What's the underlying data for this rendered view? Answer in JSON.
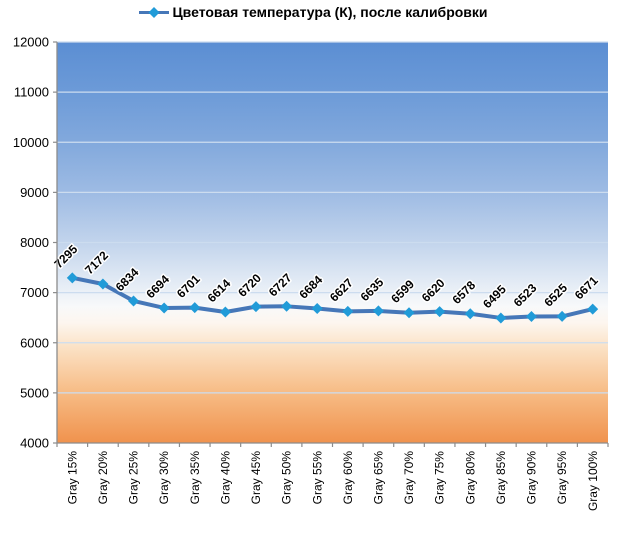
{
  "chart_data": {
    "type": "line",
    "title": "Цветовая температура (К), после калибровки",
    "legend_position": "top",
    "categories": [
      "Gray 15%",
      "Gray 20%",
      "Gray 25%",
      "Gray 30%",
      "Gray 35%",
      "Gray 40%",
      "Gray 45%",
      "Gray 50%",
      "Gray 55%",
      "Gray 60%",
      "Gray 65%",
      "Gray 70%",
      "Gray 75%",
      "Gray 80%",
      "Gray 85%",
      "Gray 90%",
      "Gray 95%",
      "Gray 100%"
    ],
    "series": [
      {
        "name": "Цветовая температура (К), после калибровки",
        "values": [
          7295,
          7172,
          6834,
          6694,
          6701,
          6614,
          6720,
          6727,
          6684,
          6627,
          6635,
          6599,
          6620,
          6578,
          6495,
          6523,
          6525,
          6671
        ]
      }
    ],
    "xlabel": "",
    "ylabel": "",
    "ylim": [
      4000,
      12000
    ],
    "ytick_step": 1000,
    "ytick_labels": [
      "4000",
      "5000",
      "6000",
      "7000",
      "8000",
      "9000",
      "10000",
      "11000",
      "12000"
    ],
    "grid": true,
    "data_labels": true,
    "data_label_rotation_deg": -45,
    "x_label_rotation_deg": -90,
    "colors": {
      "line": "#4677b8",
      "marker": "#219bd8",
      "grid": "#ccdcef",
      "axis": "#8c8c8c",
      "text": "#000000",
      "plot_bg_top": "#5b8ed3",
      "plot_bg_middle": "#fbfbfa",
      "plot_bg_bottom": "#f0924d"
    },
    "plot_bg_gradient_stops": [
      [
        "0%",
        "#5b8ed3"
      ],
      [
        "13%",
        "#6d9bd8"
      ],
      [
        "26%",
        "#84aadd"
      ],
      [
        "38%",
        "#9fbce4"
      ],
      [
        "50%",
        "#c2d4ec"
      ],
      [
        "60%",
        "#e3ebf5"
      ],
      [
        "66%",
        "#f8f9fa"
      ],
      [
        "70%",
        "#fdf6ef"
      ],
      [
        "76%",
        "#fbe2c6"
      ],
      [
        "87%",
        "#f7bd87"
      ],
      [
        "100%",
        "#f0924d"
      ]
    ]
  }
}
